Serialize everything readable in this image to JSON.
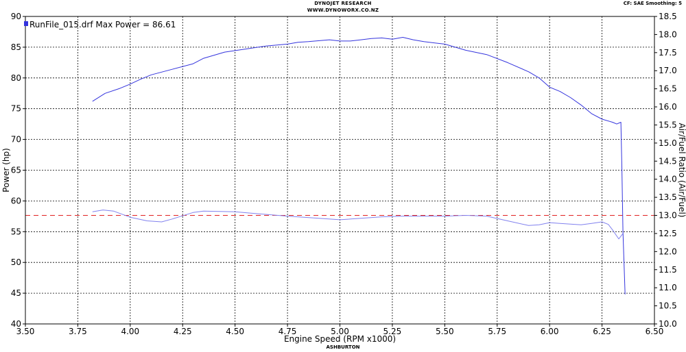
{
  "header": {
    "title": "DYNOJET RESEARCH",
    "url": "WWW.DYNOWORX.CO.NZ",
    "correction": "CF: SAE  Smoothing: 5"
  },
  "footer": {
    "location": "ASHBURTON"
  },
  "chart_data": {
    "type": "line",
    "xlabel": "Engine Speed (RPM x1000)",
    "ylabel": "Power (hp)",
    "y2label": "Air/Fuel Ratio (Air/Fuel)",
    "xlim": [
      3.5,
      6.5
    ],
    "ylim": [
      40,
      90
    ],
    "y2lim": [
      10.0,
      18.5
    ],
    "grid": true,
    "legend_position": "top-left",
    "x_ticks": [
      "3.50",
      "3.75",
      "4.00",
      "4.25",
      "4.50",
      "4.75",
      "5.00",
      "5.25",
      "5.50",
      "5.75",
      "6.00",
      "6.25",
      "6.50"
    ],
    "y_ticks": [
      "40",
      "45",
      "50",
      "55",
      "60",
      "65",
      "70",
      "75",
      "80",
      "85",
      "90"
    ],
    "y2_ticks": [
      "10.0",
      "10.5",
      "11.0",
      "11.5",
      "12.0",
      "12.5",
      "13.0",
      "13.5",
      "14.0",
      "14.5",
      "15.0",
      "15.5",
      "16.0",
      "16.5",
      "17.0",
      "17.5",
      "18.0",
      "18.5"
    ],
    "reference_line": {
      "axis": "y2",
      "value": 13.0,
      "color": "#e02020",
      "style": "dashed"
    },
    "series": [
      {
        "name": "RunFile_015.drf Max Power = 86.61",
        "axis": "y",
        "color": "#3333dd",
        "x": [
          3.82,
          3.88,
          3.95,
          4.0,
          4.05,
          4.1,
          4.2,
          4.3,
          4.35,
          4.45,
          4.55,
          4.65,
          4.75,
          4.8,
          4.85,
          4.95,
          5.0,
          5.05,
          5.1,
          5.15,
          5.2,
          5.25,
          5.3,
          5.35,
          5.4,
          5.5,
          5.55,
          5.6,
          5.7,
          5.8,
          5.9,
          5.95,
          6.0,
          6.05,
          6.1,
          6.15,
          6.2,
          6.25,
          6.3,
          6.32,
          6.34,
          6.345,
          6.35,
          6.36
        ],
        "y": [
          76.2,
          77.5,
          78.3,
          79.0,
          79.8,
          80.5,
          81.4,
          82.3,
          83.2,
          84.2,
          84.7,
          85.2,
          85.5,
          85.8,
          85.9,
          86.2,
          86.0,
          86.0,
          86.2,
          86.4,
          86.5,
          86.3,
          86.6,
          86.2,
          85.9,
          85.5,
          85.0,
          84.5,
          83.8,
          82.5,
          81.0,
          80.0,
          78.5,
          77.8,
          76.8,
          75.6,
          74.2,
          73.3,
          72.8,
          72.5,
          72.8,
          65.0,
          55.0,
          44.8
        ]
      },
      {
        "name": "Air/Fuel",
        "axis": "y2",
        "color": "#8080ee",
        "x": [
          3.82,
          3.87,
          3.92,
          4.0,
          4.08,
          4.15,
          4.2,
          4.3,
          4.35,
          4.5,
          4.6,
          4.75,
          4.9,
          5.0,
          5.1,
          5.2,
          5.3,
          5.4,
          5.5,
          5.6,
          5.7,
          5.8,
          5.9,
          5.95,
          6.0,
          6.05,
          6.1,
          6.15,
          6.2,
          6.25,
          6.28,
          6.3,
          6.33,
          6.35
        ],
        "y": [
          13.1,
          13.15,
          13.12,
          12.95,
          12.85,
          12.82,
          12.9,
          13.08,
          13.12,
          13.1,
          13.05,
          12.98,
          12.92,
          12.88,
          12.92,
          12.96,
          12.98,
          12.98,
          12.98,
          13.0,
          12.98,
          12.85,
          12.72,
          12.74,
          12.8,
          12.78,
          12.76,
          12.74,
          12.78,
          12.82,
          12.75,
          12.6,
          12.35,
          12.5
        ]
      }
    ]
  }
}
